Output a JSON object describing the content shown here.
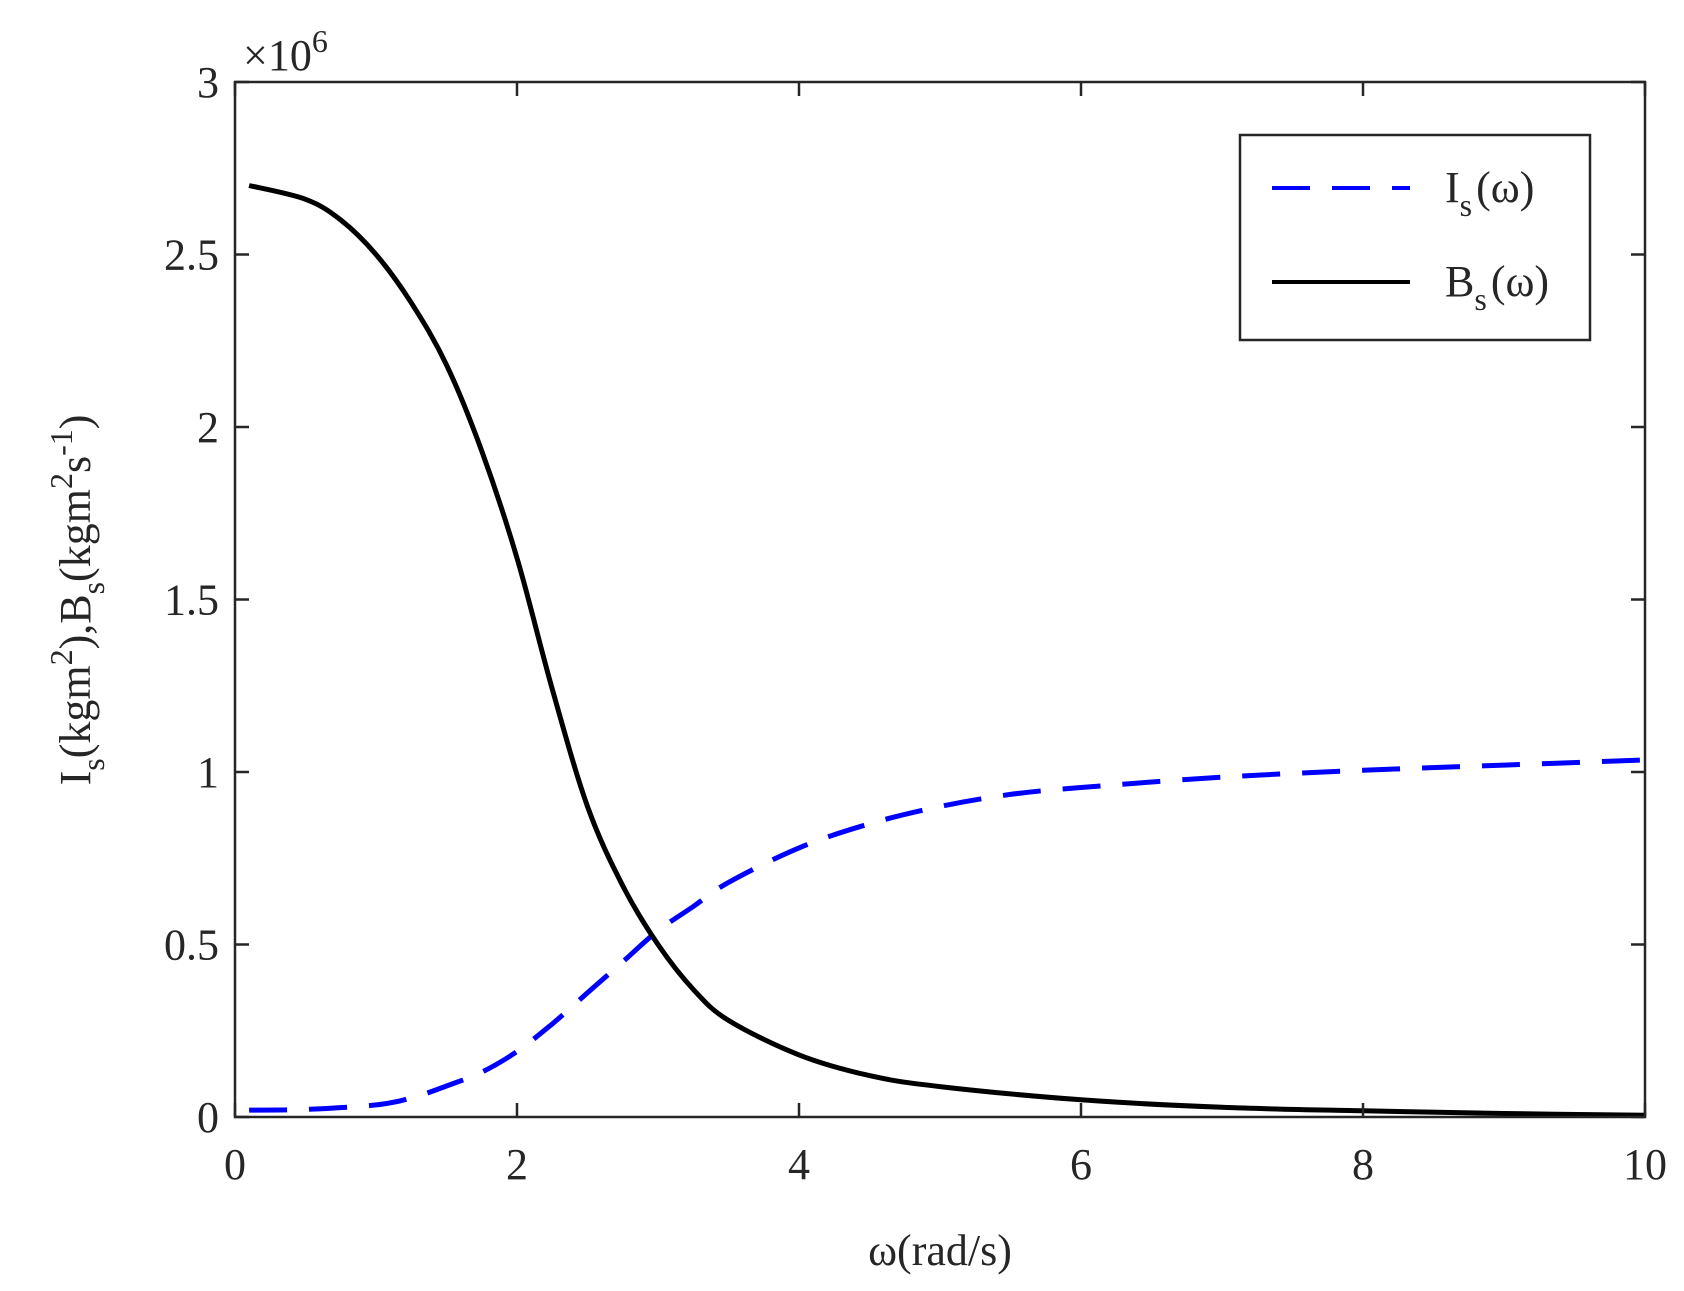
{
  "chart_data": {
    "type": "line",
    "xlabel": "ω(rad/s)",
    "ylabel": "I_s(kgm^2),B_s(kgm^2s^-1)",
    "ylabel_parts": {
      "a": "I",
      "a_sub": "s",
      "b": "(kgm",
      "b_sup": "2",
      "c": "),B",
      "c_sub": "s",
      "d": "(kgm",
      "d_sup": "2",
      "e": "s",
      "e_sup": "-1",
      "f": ")"
    },
    "y_exponent": "×10",
    "y_exponent_power": "6",
    "xlim": [
      0,
      10
    ],
    "ylim": [
      0,
      3
    ],
    "x_ticks": [
      0,
      2,
      4,
      6,
      8,
      10
    ],
    "x_tick_labels": [
      "0",
      "2",
      "4",
      "6",
      "8",
      "10"
    ],
    "y_ticks": [
      0,
      0.5,
      1,
      1.5,
      2,
      2.5,
      3
    ],
    "y_tick_labels": [
      "0",
      "0.5",
      "1",
      "1.5",
      "2",
      "2.5",
      "3"
    ],
    "grid": false,
    "legend_position": "top-right",
    "series": [
      {
        "name": "I_s(ω)",
        "legend_main": "I",
        "legend_sub": "s",
        "legend_tail": "(ω)",
        "color": "#0000ff",
        "style": "dashed",
        "x": [
          0.1,
          0.5,
          1.0,
          1.25,
          1.5,
          1.75,
          2.0,
          2.25,
          2.5,
          2.75,
          3.0,
          3.25,
          3.5,
          4.0,
          4.5,
          5.0,
          5.5,
          6.0,
          7.0,
          8.0,
          9.0,
          10.0
        ],
        "y": [
          0.02,
          0.022,
          0.035,
          0.055,
          0.09,
          0.13,
          0.19,
          0.27,
          0.36,
          0.45,
          0.54,
          0.61,
          0.68,
          0.78,
          0.85,
          0.9,
          0.935,
          0.955,
          0.985,
          1.005,
          1.02,
          1.035
        ]
      },
      {
        "name": "B_s(ω)",
        "legend_main": "B",
        "legend_sub": "s",
        "legend_tail": "(ω)",
        "color": "#000000",
        "style": "solid",
        "x": [
          0.1,
          0.5,
          0.75,
          1.0,
          1.25,
          1.5,
          1.75,
          2.0,
          2.25,
          2.5,
          2.75,
          3.0,
          3.25,
          3.5,
          4.0,
          4.5,
          5.0,
          6.0,
          7.0,
          8.0,
          9.0,
          10.0
        ],
        "y": [
          2.7,
          2.66,
          2.6,
          2.5,
          2.36,
          2.18,
          1.93,
          1.62,
          1.24,
          0.9,
          0.67,
          0.5,
          0.37,
          0.28,
          0.18,
          0.12,
          0.088,
          0.05,
          0.028,
          0.018,
          0.01,
          0.005
        ]
      }
    ]
  }
}
